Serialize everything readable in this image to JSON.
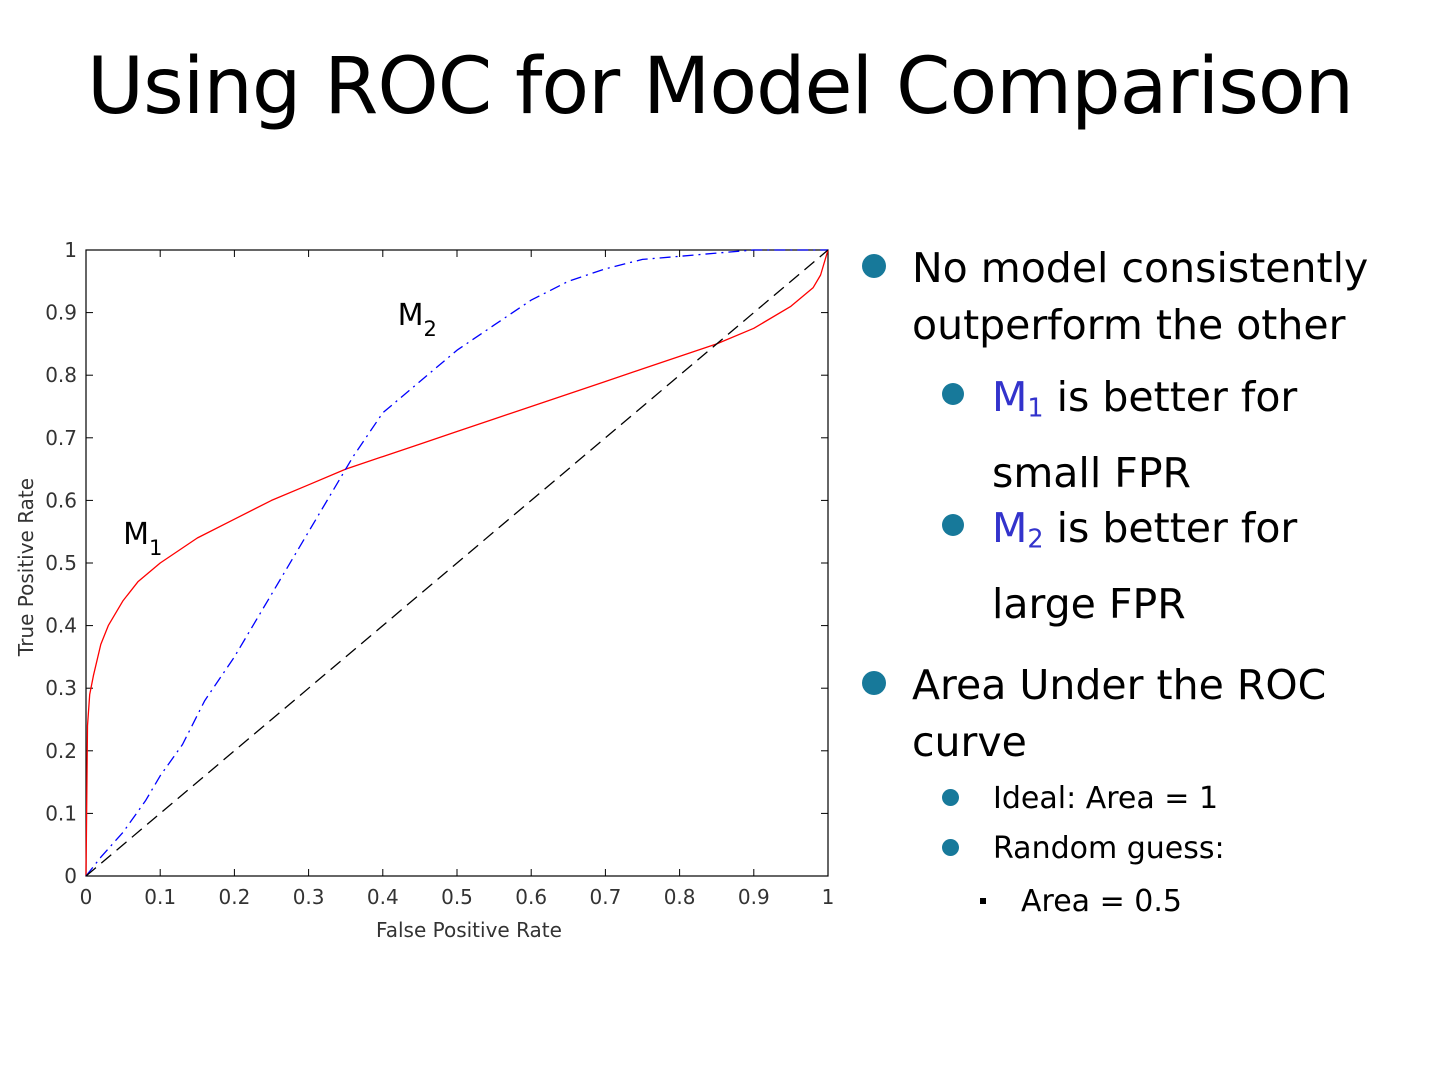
{
  "slide": {
    "title": "Using ROC for Model Comparison"
  },
  "bullets": {
    "b1": {
      "line1": "No model consistently",
      "line2": "outperform the other"
    },
    "b1a": {
      "model": "M",
      "sub": "1",
      "rest": " is better for",
      "line2": "small FPR"
    },
    "b1b": {
      "model": "M",
      "sub": "2",
      "rest": " is better for",
      "line2": "large FPR"
    },
    "b2": {
      "line1": "Area Under the ROC",
      "line2": "curve"
    },
    "b2a": "Ideal:  Area = 1",
    "b2b": "Random guess:",
    "b2b1": "Area = 0.5"
  },
  "colors": {
    "bullet": "#17799a",
    "model_label": "#3333cc",
    "m1": "#ff0000",
    "m2": "#0000ff",
    "diag": "#000000"
  },
  "chart_data": {
    "type": "line",
    "xlabel": "False Positive Rate",
    "ylabel": "True Positive Rate",
    "xlim": [
      0,
      1
    ],
    "ylim": [
      0,
      1
    ],
    "xticks": [
      "0",
      "0.1",
      "0.2",
      "0.3",
      "0.4",
      "0.5",
      "0.6",
      "0.7",
      "0.8",
      "0.9",
      "1"
    ],
    "yticks": [
      "0",
      "0.1",
      "0.2",
      "0.3",
      "0.4",
      "0.5",
      "0.6",
      "0.7",
      "0.8",
      "0.9",
      "1"
    ],
    "grid": false,
    "annotations": [
      {
        "text": "M",
        "sub": "1",
        "x": 0.05,
        "y": 0.53
      },
      {
        "text": "M",
        "sub": "2",
        "x": 0.42,
        "y": 0.88
      }
    ],
    "series": [
      {
        "id": "m1",
        "style": "solid",
        "x": [
          0,
          0.002,
          0.005,
          0.01,
          0.02,
          0.03,
          0.05,
          0.07,
          0.1,
          0.15,
          0.2,
          0.25,
          0.3,
          0.35,
          0.4,
          0.45,
          0.5,
          0.55,
          0.6,
          0.65,
          0.7,
          0.75,
          0.8,
          0.85,
          0.9,
          0.95,
          0.98,
          0.99,
          1.0
        ],
        "y": [
          0,
          0.24,
          0.29,
          0.32,
          0.37,
          0.4,
          0.44,
          0.47,
          0.5,
          0.54,
          0.57,
          0.6,
          0.625,
          0.65,
          0.67,
          0.69,
          0.71,
          0.73,
          0.75,
          0.77,
          0.79,
          0.81,
          0.83,
          0.85,
          0.875,
          0.91,
          0.94,
          0.96,
          1.0
        ]
      },
      {
        "id": "m2",
        "style": "dash-dot",
        "x": [
          0,
          0.02,
          0.05,
          0.08,
          0.1,
          0.13,
          0.16,
          0.2,
          0.25,
          0.3,
          0.33,
          0.36,
          0.4,
          0.45,
          0.5,
          0.55,
          0.6,
          0.65,
          0.7,
          0.75,
          0.8,
          0.85,
          0.9,
          0.95,
          1.0
        ],
        "y": [
          0,
          0.03,
          0.07,
          0.12,
          0.16,
          0.21,
          0.28,
          0.35,
          0.45,
          0.55,
          0.61,
          0.67,
          0.74,
          0.79,
          0.84,
          0.88,
          0.92,
          0.95,
          0.97,
          0.985,
          0.99,
          0.995,
          1.0,
          1.0,
          1.0
        ]
      },
      {
        "id": "diag",
        "style": "dashed",
        "x": [
          0,
          1
        ],
        "y": [
          0,
          1
        ]
      }
    ]
  }
}
